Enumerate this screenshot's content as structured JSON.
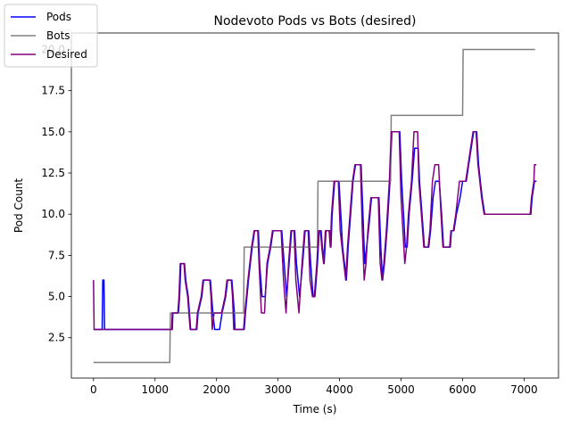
{
  "chart_data": {
    "type": "line",
    "title": "Nodevoto Pods vs Bots (desired)",
    "xlabel": "Time (s)",
    "ylabel": "Pod Count",
    "xlim": [
      -360,
      7560
    ],
    "ylim": [
      0.05,
      21.0
    ],
    "x_ticks": [
      0,
      1000,
      2000,
      3000,
      4000,
      5000,
      6000,
      7000
    ],
    "x_tick_labels": [
      "0",
      "1000",
      "2000",
      "3000",
      "4000",
      "5000",
      "6000",
      "7000"
    ],
    "y_ticks": [
      2.5,
      5.0,
      7.5,
      10.0,
      12.5,
      15.0,
      17.5,
      20.0
    ],
    "y_tick_labels": [
      "2.5",
      "5.0",
      "7.5",
      "10.0",
      "12.5",
      "15.0",
      "17.5",
      "20.0"
    ],
    "grid": false,
    "legend_position": "top-left",
    "series": [
      {
        "name": "Pods",
        "color": "#0000ff",
        "step": true,
        "points": [
          [
            0,
            3
          ],
          [
            140,
            3
          ],
          [
            150,
            6
          ],
          [
            170,
            6
          ],
          [
            180,
            3
          ],
          [
            1280,
            3
          ],
          [
            1290,
            4
          ],
          [
            1380,
            4
          ],
          [
            1400,
            5
          ],
          [
            1420,
            7
          ],
          [
            1480,
            7
          ],
          [
            1500,
            6
          ],
          [
            1540,
            5
          ],
          [
            1580,
            3
          ],
          [
            1680,
            3
          ],
          [
            1700,
            4
          ],
          [
            1760,
            5
          ],
          [
            1790,
            6
          ],
          [
            1900,
            6
          ],
          [
            1920,
            5
          ],
          [
            1940,
            4
          ],
          [
            1970,
            3
          ],
          [
            2050,
            3
          ],
          [
            2090,
            4
          ],
          [
            2150,
            5
          ],
          [
            2180,
            6
          ],
          [
            2250,
            6
          ],
          [
            2270,
            5
          ],
          [
            2290,
            4
          ],
          [
            2300,
            3
          ],
          [
            2450,
            3
          ],
          [
            2470,
            4
          ],
          [
            2520,
            6
          ],
          [
            2580,
            8
          ],
          [
            2620,
            9
          ],
          [
            2680,
            9
          ],
          [
            2700,
            7
          ],
          [
            2740,
            5
          ],
          [
            2790,
            5
          ],
          [
            2830,
            7
          ],
          [
            2880,
            8
          ],
          [
            2920,
            9
          ],
          [
            3060,
            9
          ],
          [
            3100,
            7
          ],
          [
            3140,
            5
          ],
          [
            3180,
            7
          ],
          [
            3220,
            9
          ],
          [
            3270,
            9
          ],
          [
            3300,
            7
          ],
          [
            3350,
            5
          ],
          [
            3400,
            7
          ],
          [
            3440,
            9
          ],
          [
            3500,
            9
          ],
          [
            3530,
            7
          ],
          [
            3570,
            5
          ],
          [
            3600,
            5
          ],
          [
            3640,
            7
          ],
          [
            3670,
            9
          ],
          [
            3700,
            9
          ],
          [
            3720,
            8
          ],
          [
            3750,
            7
          ],
          [
            3780,
            9
          ],
          [
            3840,
            9
          ],
          [
            3860,
            8
          ],
          [
            3880,
            10
          ],
          [
            3920,
            12
          ],
          [
            3990,
            12
          ],
          [
            4020,
            10
          ],
          [
            4050,
            8
          ],
          [
            4080,
            7
          ],
          [
            4110,
            6
          ],
          [
            4140,
            8
          ],
          [
            4180,
            10
          ],
          [
            4220,
            12
          ],
          [
            4260,
            13
          ],
          [
            4350,
            13
          ],
          [
            4380,
            10
          ],
          [
            4410,
            7
          ],
          [
            4440,
            8
          ],
          [
            4470,
            9
          ],
          [
            4520,
            11
          ],
          [
            4640,
            11
          ],
          [
            4670,
            8
          ],
          [
            4700,
            6
          ],
          [
            4730,
            7
          ],
          [
            4770,
            9
          ],
          [
            4820,
            12
          ],
          [
            4850,
            15
          ],
          [
            4980,
            15
          ],
          [
            5010,
            12
          ],
          [
            5040,
            10
          ],
          [
            5070,
            8
          ],
          [
            5100,
            8
          ],
          [
            5130,
            10
          ],
          [
            5180,
            12
          ],
          [
            5220,
            14
          ],
          [
            5280,
            14
          ],
          [
            5300,
            12
          ],
          [
            5340,
            10
          ],
          [
            5380,
            8
          ],
          [
            5450,
            8
          ],
          [
            5480,
            9
          ],
          [
            5520,
            11
          ],
          [
            5560,
            12
          ],
          [
            5620,
            12
          ],
          [
            5660,
            10
          ],
          [
            5690,
            8
          ],
          [
            5800,
            8
          ],
          [
            5820,
            9
          ],
          [
            5860,
            9
          ],
          [
            5900,
            10
          ],
          [
            5960,
            11
          ],
          [
            6000,
            12
          ],
          [
            6060,
            12
          ],
          [
            6100,
            13
          ],
          [
            6140,
            14
          ],
          [
            6180,
            15
          ],
          [
            6230,
            15
          ],
          [
            6260,
            13
          ],
          [
            6290,
            12
          ],
          [
            6320,
            11
          ],
          [
            6360,
            10
          ],
          [
            7110,
            10
          ],
          [
            7130,
            11
          ],
          [
            7170,
            12
          ],
          [
            7200,
            12
          ]
        ]
      },
      {
        "name": "Bots",
        "color": "#808080",
        "step": true,
        "points": [
          [
            0,
            1
          ],
          [
            1240,
            1
          ],
          [
            1250,
            4
          ],
          [
            2440,
            4
          ],
          [
            2450,
            8
          ],
          [
            3640,
            8
          ],
          [
            3650,
            12
          ],
          [
            4830,
            12
          ],
          [
            4840,
            16
          ],
          [
            6000,
            16
          ],
          [
            6010,
            20
          ],
          [
            7180,
            20
          ]
        ]
      },
      {
        "name": "Desired",
        "color": "#800080",
        "step": true,
        "points": [
          [
            0,
            6
          ],
          [
            10,
            3
          ],
          [
            1270,
            3
          ],
          [
            1280,
            4
          ],
          [
            1370,
            4
          ],
          [
            1390,
            5
          ],
          [
            1410,
            7
          ],
          [
            1470,
            7
          ],
          [
            1490,
            6
          ],
          [
            1530,
            5
          ],
          [
            1570,
            3
          ],
          [
            1670,
            3
          ],
          [
            1690,
            4
          ],
          [
            1750,
            5
          ],
          [
            1780,
            6
          ],
          [
            1890,
            6
          ],
          [
            1910,
            5
          ],
          [
            1930,
            3
          ],
          [
            1960,
            4
          ],
          [
            2040,
            4
          ],
          [
            2080,
            4
          ],
          [
            2140,
            5
          ],
          [
            2170,
            6
          ],
          [
            2240,
            6
          ],
          [
            2260,
            5
          ],
          [
            2280,
            3
          ],
          [
            2440,
            3
          ],
          [
            2460,
            4
          ],
          [
            2510,
            6
          ],
          [
            2570,
            8
          ],
          [
            2610,
            9
          ],
          [
            2670,
            9
          ],
          [
            2690,
            7
          ],
          [
            2730,
            4
          ],
          [
            2780,
            4
          ],
          [
            2820,
            7
          ],
          [
            2870,
            8
          ],
          [
            2910,
            9
          ],
          [
            3050,
            9
          ],
          [
            3090,
            6
          ],
          [
            3130,
            4
          ],
          [
            3170,
            7
          ],
          [
            3210,
            9
          ],
          [
            3260,
            9
          ],
          [
            3290,
            6
          ],
          [
            3340,
            4
          ],
          [
            3390,
            7
          ],
          [
            3430,
            9
          ],
          [
            3490,
            9
          ],
          [
            3520,
            6
          ],
          [
            3560,
            5
          ],
          [
            3590,
            5
          ],
          [
            3630,
            7
          ],
          [
            3660,
            9
          ],
          [
            3690,
            9
          ],
          [
            3710,
            8
          ],
          [
            3740,
            7
          ],
          [
            3770,
            9
          ],
          [
            3830,
            9
          ],
          [
            3850,
            8
          ],
          [
            3870,
            10
          ],
          [
            3910,
            12
          ],
          [
            3980,
            12
          ],
          [
            4010,
            9
          ],
          [
            4040,
            8
          ],
          [
            4070,
            7
          ],
          [
            4100,
            6
          ],
          [
            4130,
            8
          ],
          [
            4170,
            10
          ],
          [
            4210,
            12
          ],
          [
            4250,
            13
          ],
          [
            4340,
            13
          ],
          [
            4370,
            9
          ],
          [
            4400,
            6
          ],
          [
            4430,
            7
          ],
          [
            4460,
            9
          ],
          [
            4510,
            11
          ],
          [
            4630,
            11
          ],
          [
            4660,
            7
          ],
          [
            4690,
            6
          ],
          [
            4720,
            7
          ],
          [
            4760,
            9
          ],
          [
            4810,
            12
          ],
          [
            4840,
            15
          ],
          [
            4970,
            15
          ],
          [
            5000,
            11
          ],
          [
            5030,
            9
          ],
          [
            5060,
            7
          ],
          [
            5090,
            8
          ],
          [
            5120,
            10
          ],
          [
            5170,
            12
          ],
          [
            5210,
            15
          ],
          [
            5270,
            15
          ],
          [
            5290,
            12
          ],
          [
            5330,
            10
          ],
          [
            5370,
            8
          ],
          [
            5440,
            8
          ],
          [
            5470,
            9
          ],
          [
            5510,
            12
          ],
          [
            5550,
            13
          ],
          [
            5610,
            13
          ],
          [
            5650,
            10
          ],
          [
            5680,
            8
          ],
          [
            5790,
            8
          ],
          [
            5810,
            9
          ],
          [
            5850,
            9
          ],
          [
            5890,
            10
          ],
          [
            5950,
            12
          ],
          [
            5990,
            12
          ],
          [
            6050,
            12
          ],
          [
            6090,
            13
          ],
          [
            6130,
            14
          ],
          [
            6170,
            15
          ],
          [
            6220,
            15
          ],
          [
            6250,
            13
          ],
          [
            6280,
            12
          ],
          [
            6310,
            11
          ],
          [
            6350,
            10
          ],
          [
            7100,
            10
          ],
          [
            7120,
            11
          ],
          [
            7160,
            12
          ],
          [
            7170,
            13
          ],
          [
            7200,
            13
          ]
        ]
      }
    ]
  }
}
